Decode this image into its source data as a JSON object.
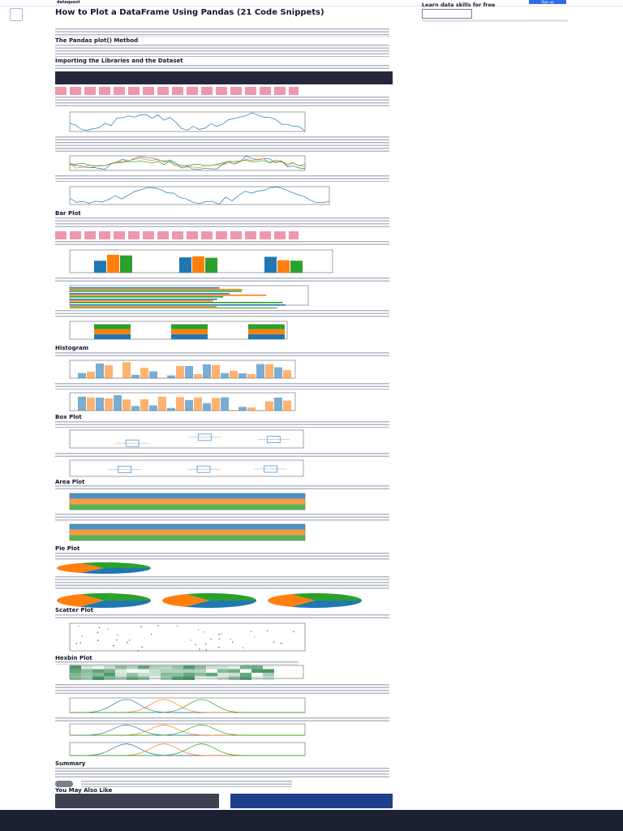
{
  "header": {
    "logo": "dataquest",
    "button": "Sign up"
  },
  "sidebar": {
    "title": "Learn data skills for free"
  },
  "article": {
    "title": "How to Plot a DataFrame Using Pandas (21 Code Snippets)",
    "headings": [
      "The Pandas plot() Method",
      "Importing the Libraries and the Dataset",
      "Bar Plot",
      "Histogram",
      "Box Plot",
      "Area Plot",
      "Pie Plot",
      "Scatter Plot",
      "Hexbin Plot",
      "Summary",
      "You May Also Like"
    ]
  }
}
